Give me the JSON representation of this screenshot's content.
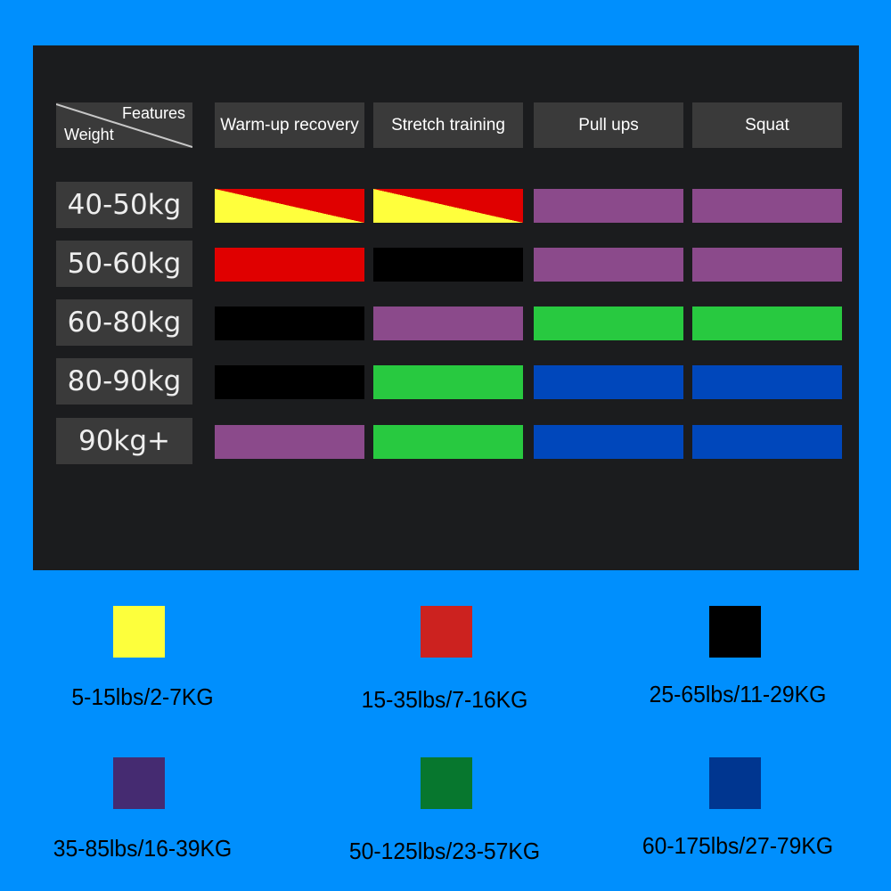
{
  "table": {
    "corner": {
      "features_label": "Features",
      "weight_label": "Weight"
    },
    "columns": [
      "Warm-up recovery",
      "Stretch training",
      "Pull ups",
      "Squat"
    ],
    "rows": [
      {
        "weight": "40-50kg",
        "cells": [
          "yellow-red",
          "yellow-red",
          "purple",
          "purple"
        ]
      },
      {
        "weight": "50-60kg",
        "cells": [
          "red",
          "black",
          "purple",
          "purple"
        ]
      },
      {
        "weight": "60-80kg",
        "cells": [
          "black",
          "purple",
          "green",
          "green"
        ]
      },
      {
        "weight": "80-90kg",
        "cells": [
          "black",
          "green",
          "blue",
          "blue"
        ]
      },
      {
        "weight": "90kg+",
        "cells": [
          "purple",
          "green",
          "blue",
          "blue"
        ]
      }
    ]
  },
  "colors": {
    "yellow": "#ffff3c",
    "red": "#e00000",
    "black": "#000000",
    "purple": "#8b4a8b",
    "green": "#28c940",
    "blue": "#0047bb",
    "background": "#008ffd",
    "panel": "#1b1c1e"
  },
  "legend": [
    {
      "color": "#fdff3c",
      "label": "5-15lbs/2-7KG"
    },
    {
      "color": "#cc221f",
      "label": "15-35lbs/7-16KG"
    },
    {
      "color": "#000000",
      "label": "25-65lbs/11-29KG"
    },
    {
      "color": "#452b71",
      "label": "35-85lbs/16-39KG"
    },
    {
      "color": "#07772e",
      "label": "50-125lbs/23-57KG"
    },
    {
      "color": "#003690",
      "label": "60-175lbs/27-79KG"
    }
  ]
}
